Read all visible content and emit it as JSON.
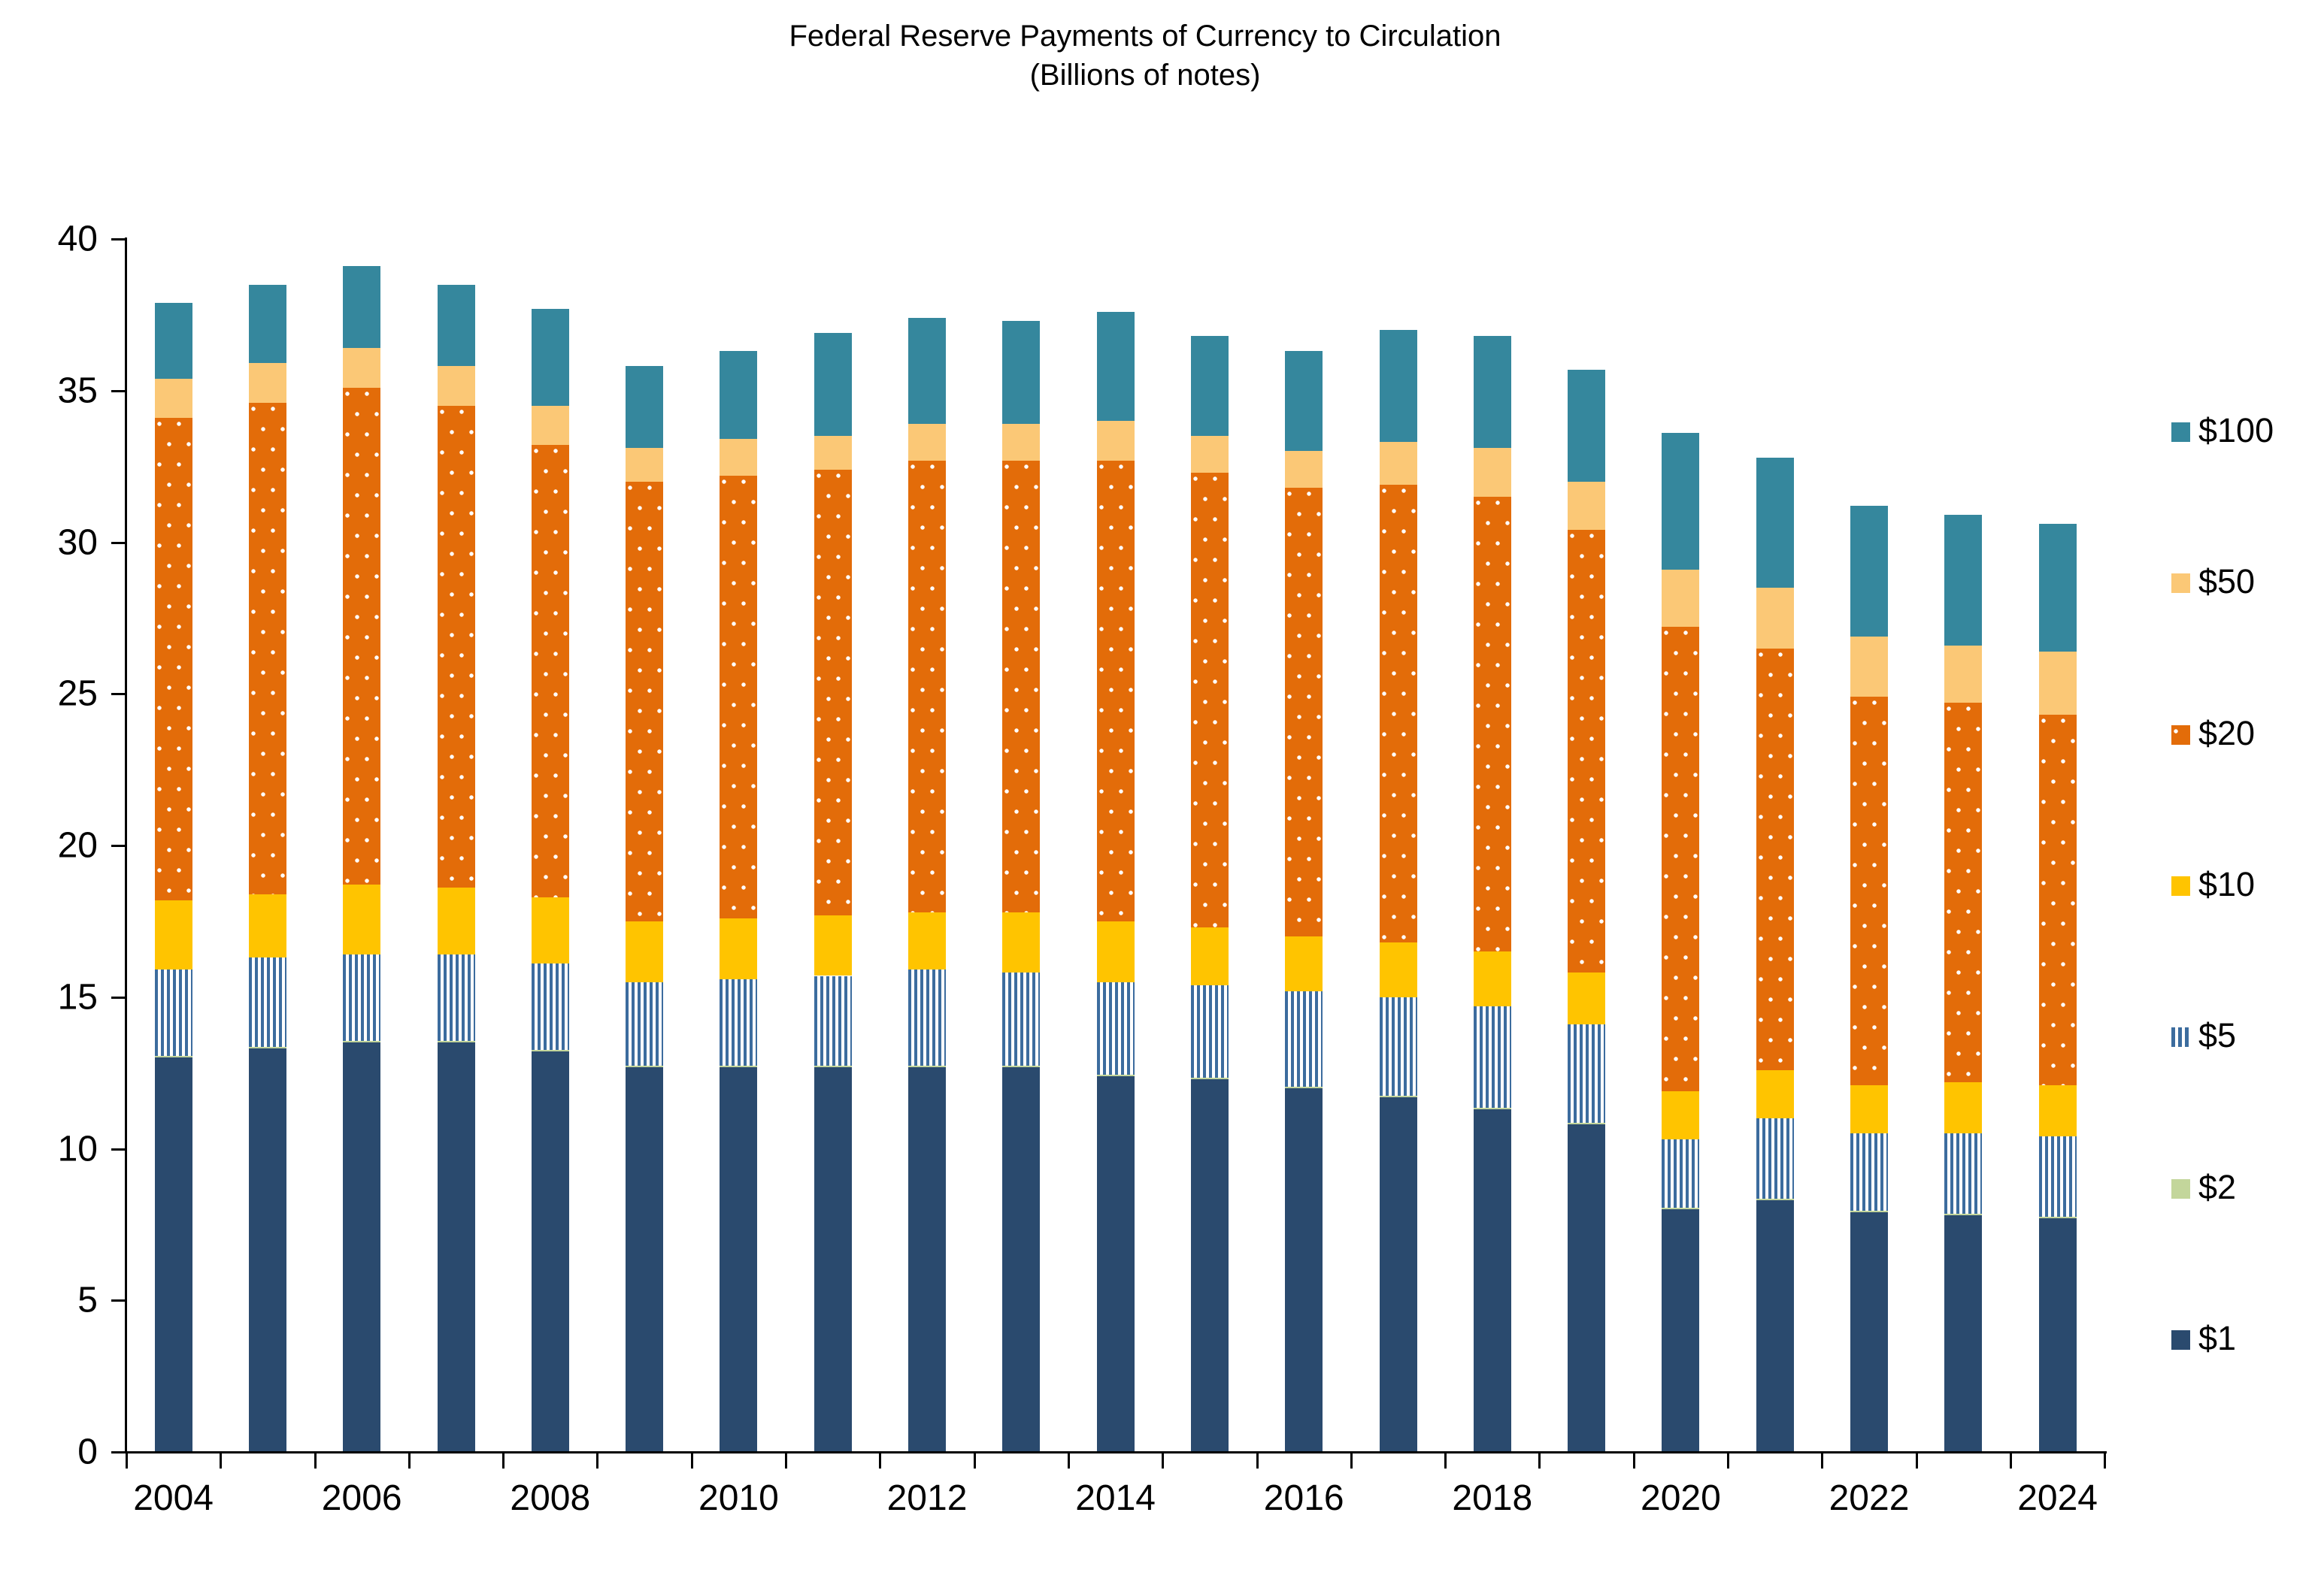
{
  "chart_data": {
    "type": "bar",
    "stacked": true,
    "title": "Federal Reserve Payments of Currency to Circulation",
    "subtitle": "(Billions of notes)",
    "xlabel": "",
    "ylabel": "",
    "ylim": [
      0,
      40
    ],
    "ytick_interval": 5,
    "ytick_labels": [
      "0",
      "5",
      "10",
      "15",
      "20",
      "25",
      "30",
      "35",
      "40"
    ],
    "grid": "off",
    "legend_position": "right",
    "legend_order_top_to_bottom": [
      "$100",
      "$50",
      "$20",
      "$10",
      "$5",
      "$2",
      "$1"
    ],
    "categories": [
      "2004",
      "2005",
      "2006",
      "2007",
      "2008",
      "2009",
      "2010",
      "2011",
      "2012",
      "2013",
      "2014",
      "2015",
      "2016",
      "2017",
      "2018",
      "2019",
      "2020",
      "2021",
      "2022",
      "2023",
      "2024"
    ],
    "xtick_labels_shown": [
      "2004",
      "2006",
      "2008",
      "2010",
      "2012",
      "2014",
      "2016",
      "2018",
      "2020",
      "2022",
      "2024"
    ],
    "series": [
      {
        "name": "$1",
        "color": "#2A4A6E",
        "pattern": "solid",
        "values": [
          13.0,
          13.3,
          13.5,
          13.5,
          13.2,
          12.7,
          12.7,
          12.7,
          12.7,
          12.7,
          12.4,
          12.3,
          12.0,
          11.7,
          11.3,
          10.8,
          8.0,
          8.3,
          7.9,
          7.8,
          7.7
        ]
      },
      {
        "name": "$2",
        "color": "#C3D69B",
        "pattern": "solid",
        "values": [
          0.05,
          0.05,
          0.05,
          0.05,
          0.05,
          0.05,
          0.05,
          0.05,
          0.05,
          0.05,
          0.05,
          0.05,
          0.05,
          0.05,
          0.05,
          0.05,
          0.05,
          0.05,
          0.05,
          0.05,
          0.05
        ]
      },
      {
        "name": "$5",
        "color": "#3C6C9E",
        "pattern": "vstripes",
        "values": [
          2.85,
          2.95,
          2.85,
          2.85,
          2.85,
          2.75,
          2.85,
          2.95,
          3.15,
          3.05,
          3.05,
          3.05,
          3.15,
          3.25,
          3.35,
          3.25,
          2.25,
          2.65,
          2.55,
          2.65,
          2.65
        ]
      },
      {
        "name": "$10",
        "color": "#FFC400",
        "pattern": "solid",
        "values": [
          2.3,
          2.1,
          2.3,
          2.2,
          2.2,
          2.0,
          2.0,
          2.0,
          1.9,
          2.0,
          2.0,
          1.9,
          1.8,
          1.8,
          1.8,
          1.7,
          1.6,
          1.6,
          1.6,
          1.7,
          1.7
        ]
      },
      {
        "name": "$20",
        "color": "#E36C09",
        "pattern": "dots",
        "values": [
          15.9,
          16.2,
          16.4,
          15.9,
          14.9,
          14.5,
          14.6,
          14.7,
          14.9,
          14.9,
          15.2,
          15.0,
          14.8,
          15.1,
          15.0,
          14.6,
          15.3,
          13.9,
          12.8,
          12.5,
          12.2
        ]
      },
      {
        "name": "$50",
        "color": "#FBC876",
        "pattern": "solid",
        "values": [
          1.3,
          1.3,
          1.3,
          1.3,
          1.3,
          1.1,
          1.2,
          1.1,
          1.2,
          1.2,
          1.3,
          1.2,
          1.2,
          1.4,
          1.6,
          1.6,
          1.9,
          2.0,
          2.0,
          1.9,
          2.1
        ]
      },
      {
        "name": "$100",
        "color": "#35879D",
        "pattern": "solid",
        "values": [
          2.5,
          2.6,
          2.7,
          2.7,
          3.2,
          2.7,
          2.9,
          3.4,
          3.5,
          3.4,
          3.6,
          3.3,
          3.3,
          3.7,
          3.7,
          3.7,
          4.5,
          4.3,
          4.3,
          4.3,
          4.2
        ]
      }
    ],
    "totals": [
      37.9,
      38.5,
      39.1,
      38.5,
      37.7,
      35.8,
      36.3,
      36.9,
      37.4,
      37.3,
      37.6,
      36.8,
      36.3,
      37.0,
      36.8,
      35.7,
      33.6,
      32.8,
      31.2,
      30.9,
      30.6
    ]
  },
  "layout_colors": {
    "background": "#ffffff",
    "axis": "#000000",
    "text": "#000000"
  }
}
